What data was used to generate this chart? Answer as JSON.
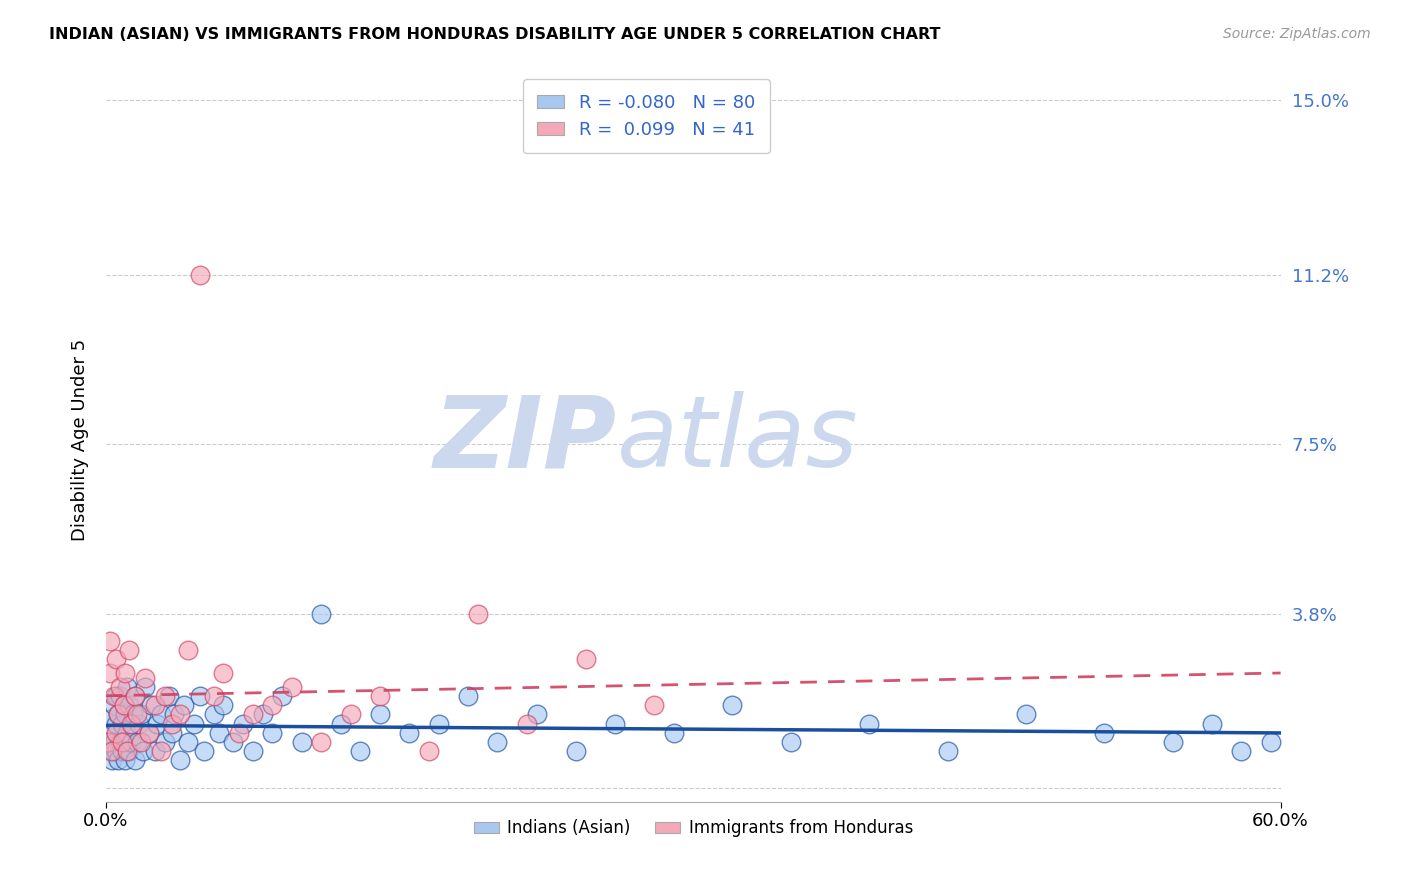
{
  "title": "INDIAN (ASIAN) VS IMMIGRANTS FROM HONDURAS DISABILITY AGE UNDER 5 CORRELATION CHART",
  "source": "Source: ZipAtlas.com",
  "ylabel": "Disability Age Under 5",
  "xlabel": "",
  "xlim": [
    0.0,
    0.6
  ],
  "ylim": [
    -0.003,
    0.155
  ],
  "yticks": [
    0.0,
    0.038,
    0.075,
    0.112,
    0.15
  ],
  "ytick_labels": [
    "",
    "3.8%",
    "7.5%",
    "11.2%",
    "15.0%"
  ],
  "xtick_labels": [
    "0.0%",
    "60.0%"
  ],
  "legend_R1": "-0.080",
  "legend_N1": "80",
  "legend_R2": "0.099",
  "legend_N2": "41",
  "color_blue": "#a8c8f0",
  "color_pink": "#f4a8b8",
  "trend_blue": "#1a4fa0",
  "trend_pink": "#d04060",
  "watermark_zip": "ZIP",
  "watermark_atlas": "atlas",
  "watermark_color": "#ccd8ee",
  "grid_color": "#cccccc",
  "background_color": "#ffffff",
  "blue_scatter_x": [
    0.001,
    0.002,
    0.002,
    0.003,
    0.003,
    0.004,
    0.004,
    0.005,
    0.005,
    0.005,
    0.006,
    0.006,
    0.007,
    0.007,
    0.008,
    0.008,
    0.009,
    0.009,
    0.01,
    0.01,
    0.011,
    0.011,
    0.012,
    0.012,
    0.013,
    0.014,
    0.015,
    0.015,
    0.016,
    0.017,
    0.018,
    0.019,
    0.02,
    0.022,
    0.023,
    0.025,
    0.026,
    0.028,
    0.03,
    0.032,
    0.034,
    0.035,
    0.038,
    0.04,
    0.042,
    0.045,
    0.048,
    0.05,
    0.055,
    0.058,
    0.06,
    0.065,
    0.07,
    0.075,
    0.08,
    0.085,
    0.09,
    0.1,
    0.11,
    0.12,
    0.13,
    0.14,
    0.155,
    0.17,
    0.185,
    0.2,
    0.22,
    0.24,
    0.26,
    0.29,
    0.32,
    0.35,
    0.39,
    0.43,
    0.47,
    0.51,
    0.545,
    0.565,
    0.58,
    0.595
  ],
  "blue_scatter_y": [
    0.01,
    0.008,
    0.015,
    0.006,
    0.012,
    0.01,
    0.018,
    0.008,
    0.014,
    0.02,
    0.006,
    0.016,
    0.01,
    0.02,
    0.008,
    0.014,
    0.01,
    0.018,
    0.006,
    0.016,
    0.012,
    0.022,
    0.008,
    0.018,
    0.01,
    0.016,
    0.006,
    0.02,
    0.01,
    0.014,
    0.016,
    0.008,
    0.022,
    0.012,
    0.018,
    0.008,
    0.014,
    0.016,
    0.01,
    0.02,
    0.012,
    0.016,
    0.006,
    0.018,
    0.01,
    0.014,
    0.02,
    0.008,
    0.016,
    0.012,
    0.018,
    0.01,
    0.014,
    0.008,
    0.016,
    0.012,
    0.02,
    0.01,
    0.038,
    0.014,
    0.008,
    0.016,
    0.012,
    0.014,
    0.02,
    0.01,
    0.016,
    0.008,
    0.014,
    0.012,
    0.018,
    0.01,
    0.014,
    0.008,
    0.016,
    0.012,
    0.01,
    0.014,
    0.008,
    0.01
  ],
  "pink_scatter_x": [
    0.001,
    0.002,
    0.002,
    0.003,
    0.004,
    0.005,
    0.005,
    0.006,
    0.007,
    0.008,
    0.009,
    0.01,
    0.011,
    0.012,
    0.013,
    0.015,
    0.016,
    0.018,
    0.02,
    0.022,
    0.025,
    0.028,
    0.03,
    0.034,
    0.038,
    0.042,
    0.048,
    0.055,
    0.06,
    0.068,
    0.075,
    0.085,
    0.095,
    0.11,
    0.125,
    0.14,
    0.165,
    0.19,
    0.215,
    0.245,
    0.28
  ],
  "pink_scatter_y": [
    0.01,
    0.025,
    0.032,
    0.008,
    0.02,
    0.012,
    0.028,
    0.016,
    0.022,
    0.01,
    0.018,
    0.025,
    0.008,
    0.03,
    0.014,
    0.02,
    0.016,
    0.01,
    0.024,
    0.012,
    0.018,
    0.008,
    0.02,
    0.014,
    0.016,
    0.03,
    0.112,
    0.02,
    0.025,
    0.012,
    0.016,
    0.018,
    0.022,
    0.01,
    0.016,
    0.02,
    0.008,
    0.038,
    0.014,
    0.028,
    0.018
  ]
}
